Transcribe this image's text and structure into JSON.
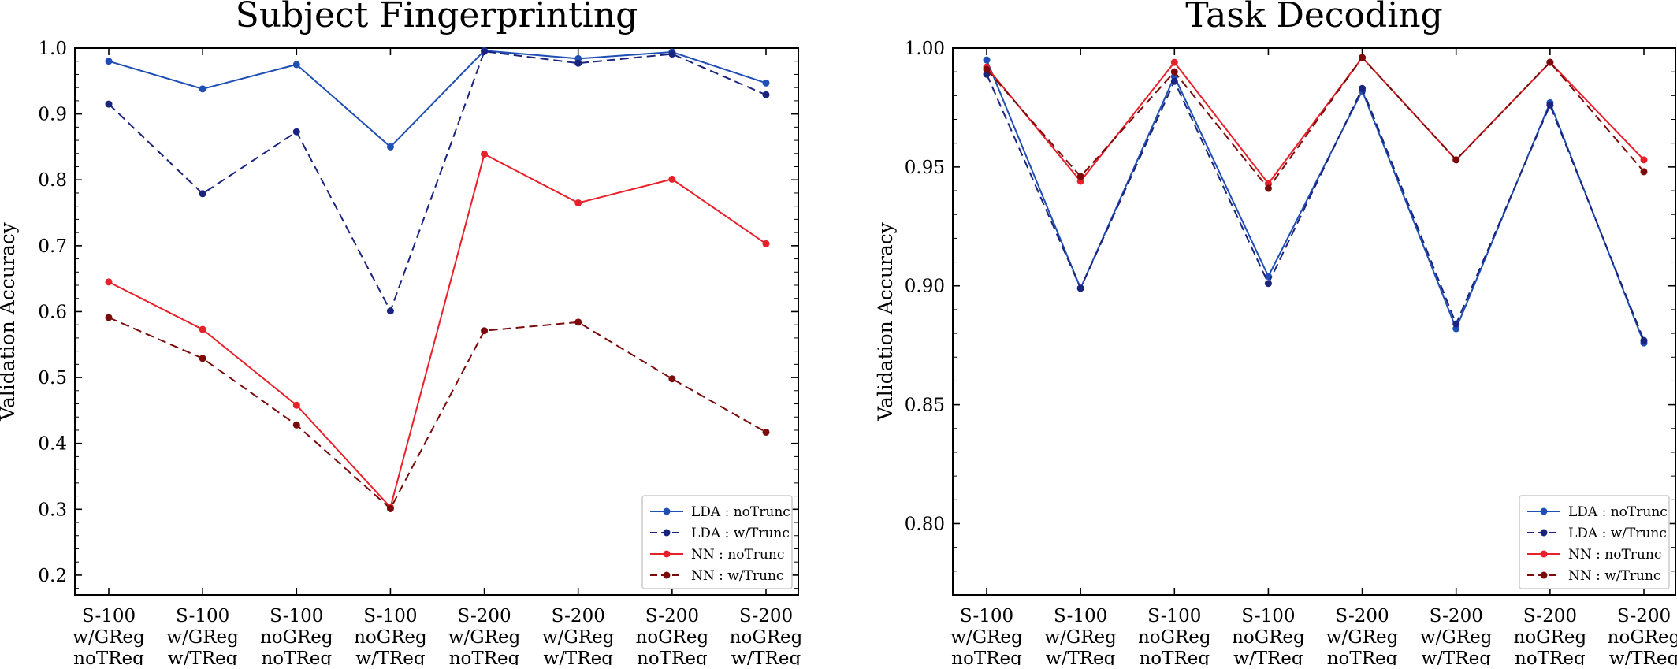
{
  "categories": [
    [
      "S-100",
      "w/GReg",
      "noTReg"
    ],
    [
      "S-100",
      "w/GReg",
      "w/TReg"
    ],
    [
      "S-100",
      "noGReg",
      "noTReg"
    ],
    [
      "S-100",
      "noGReg",
      "w/TReg"
    ],
    [
      "S-200",
      "w/GReg",
      "noTReg"
    ],
    [
      "S-200",
      "w/GReg",
      "w/TReg"
    ],
    [
      "S-200",
      "noGReg",
      "noTReg"
    ],
    [
      "S-200",
      "noGReg",
      "w/TReg"
    ]
  ],
  "colors": {
    "lda_noTrunc": "#1f4fb4",
    "lda_wTrunc": "#1a237e",
    "nn_noTrunc": "#e8202a",
    "nn_wTrunc": "#7b0a0a"
  },
  "chart_data": [
    {
      "type": "line",
      "title": "Subject Fingerprinting",
      "ylabel": "Validation Accuracy",
      "xlabel": "",
      "ylim": [
        0.17,
        1.0
      ],
      "yticks": [
        0.2,
        0.3,
        0.4,
        0.5,
        0.6,
        0.7,
        0.8,
        0.9,
        1.0
      ],
      "ytick_labels": [
        "0.2",
        "0.3",
        "0.4",
        "0.5",
        "0.6",
        "0.7",
        "0.8",
        "0.9",
        "1.0"
      ],
      "legend_position": "bottom-right",
      "grid": false,
      "series": [
        {
          "name": "LDA : noTrunc",
          "style": "solid",
          "color_key": "lda_noTrunc",
          "values": [
            0.98,
            0.938,
            0.975,
            0.85,
            0.996,
            0.984,
            0.994,
            0.947
          ]
        },
        {
          "name": "LDA : w/Trunc",
          "style": "dashed",
          "color_key": "lda_wTrunc",
          "values": [
            0.915,
            0.779,
            0.873,
            0.601,
            0.995,
            0.977,
            0.991,
            0.929
          ]
        },
        {
          "name": "NN : noTrunc",
          "style": "solid",
          "color_key": "nn_noTrunc",
          "values": [
            0.645,
            0.573,
            0.458,
            0.303,
            0.839,
            0.765,
            0.801,
            0.703
          ]
        },
        {
          "name": "NN : w/Trunc",
          "style": "dashed",
          "color_key": "nn_wTrunc",
          "values": [
            0.591,
            0.529,
            0.428,
            0.301,
            0.571,
            0.584,
            0.498,
            0.417
          ]
        }
      ]
    },
    {
      "type": "line",
      "title": "Task Decoding",
      "ylabel": "Validation Accuracy",
      "xlabel": "",
      "ylim": [
        0.77,
        1.0
      ],
      "yticks": [
        0.8,
        0.85,
        0.9,
        0.95,
        1.0
      ],
      "ytick_labels": [
        "0.80",
        "0.85",
        "0.90",
        "0.95",
        "1.00"
      ],
      "legend_position": "bottom-right",
      "grid": false,
      "series": [
        {
          "name": "LDA : noTrunc",
          "style": "solid",
          "color_key": "lda_noTrunc",
          "values": [
            0.995,
            0.899,
            0.988,
            0.904,
            0.982,
            0.882,
            0.977,
            0.876
          ]
        },
        {
          "name": "LDA : w/Trunc",
          "style": "dashed",
          "color_key": "lda_wTrunc",
          "values": [
            0.989,
            0.899,
            0.986,
            0.901,
            0.983,
            0.884,
            0.976,
            0.877
          ]
        },
        {
          "name": "NN : noTrunc",
          "style": "solid",
          "color_key": "nn_noTrunc",
          "values": [
            0.992,
            0.944,
            0.994,
            0.943,
            0.996,
            0.953,
            0.994,
            0.953
          ]
        },
        {
          "name": "NN : w/Trunc",
          "style": "dashed",
          "color_key": "nn_wTrunc",
          "values": [
            0.991,
            0.946,
            0.99,
            0.941,
            0.996,
            0.953,
            0.994,
            0.948
          ]
        }
      ]
    }
  ]
}
